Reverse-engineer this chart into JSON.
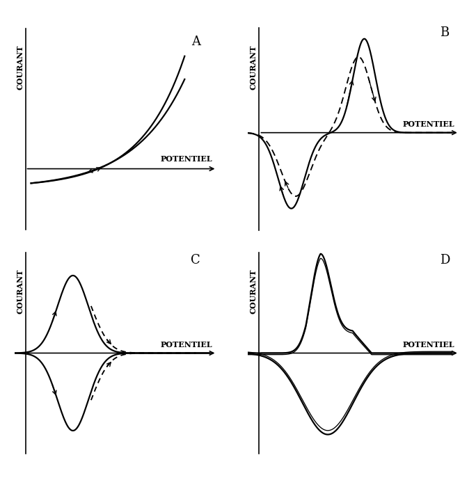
{
  "bg_color": "#ffffff",
  "label_courant": "COURANT",
  "label_potentiel": "POTENTIEL",
  "panel_labels": [
    "A",
    "B",
    "C",
    "D"
  ],
  "lw": 1.6,
  "lw_axis": 1.2
}
